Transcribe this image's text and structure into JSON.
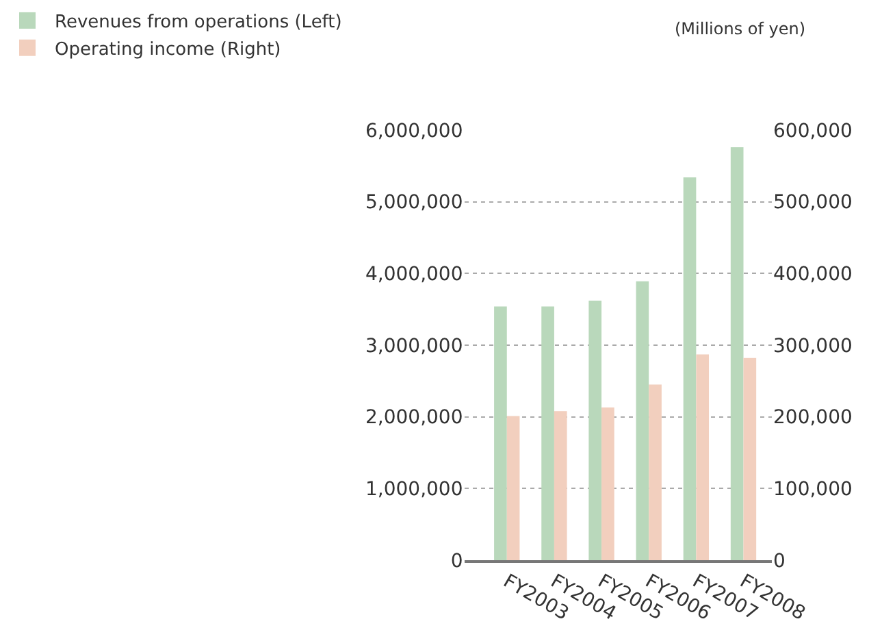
{
  "chart_data": {
    "type": "bar",
    "categories": [
      "FY2003",
      "FY2004",
      "FY2005",
      "FY2006",
      "FY2007",
      "FY2008"
    ],
    "series": [
      {
        "name": "Revenues from operations (Left)",
        "color": "#b9d8bb",
        "values": [
          3540000,
          3540000,
          3620000,
          3890000,
          5340000,
          5760000
        ]
      },
      {
        "name": "Operating income (Right)",
        "color": "#f2cfbe",
        "axis": "y2",
        "values": [
          201000,
          208000,
          213000,
          245000,
          287000,
          282000
        ]
      }
    ],
    "ylim": [
      0,
      6000000
    ],
    "yticks": [
      {
        "value": 0,
        "label": "0"
      },
      {
        "value": 1000000,
        "label": "1,000,000"
      },
      {
        "value": 2000000,
        "label": "2,000,000"
      },
      {
        "value": 3000000,
        "label": "3,000,000"
      },
      {
        "value": 4000000,
        "label": "4,000,000"
      },
      {
        "value": 5000000,
        "label": "5,000,000"
      },
      {
        "value": 6000000,
        "label": "6,000,000"
      }
    ],
    "y2lim": [
      0,
      600000
    ],
    "y2ticks": [
      {
        "value": 0,
        "label": "0"
      },
      {
        "value": 100000,
        "label": "100,000"
      },
      {
        "value": 200000,
        "label": "200,000"
      },
      {
        "value": 300000,
        "label": "300,000"
      },
      {
        "value": 400000,
        "label": "400,000"
      },
      {
        "value": 500000,
        "label": "500,000"
      },
      {
        "value": 600000,
        "label": "600,000"
      }
    ],
    "annotations": [
      "(Millions of yen)"
    ],
    "grid": "y",
    "legend": "top left"
  }
}
